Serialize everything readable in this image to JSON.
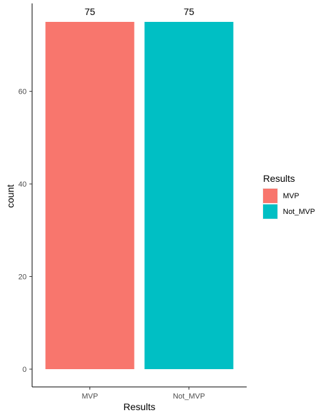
{
  "chart_data": {
    "type": "bar",
    "categories": [
      "MVP",
      "Not_MVP"
    ],
    "values": [
      75,
      75
    ],
    "data_labels": [
      "75",
      "75"
    ],
    "colors": [
      "#F8766D",
      "#00BFC4"
    ],
    "xlabel": "Results",
    "ylabel": "count",
    "ylim": [
      0,
      78.75
    ],
    "yticks": [
      0,
      20,
      40,
      60
    ],
    "grid": false,
    "legend": {
      "title": "Results",
      "placement": "right",
      "entries": [
        "MVP",
        "Not_MVP"
      ]
    }
  }
}
